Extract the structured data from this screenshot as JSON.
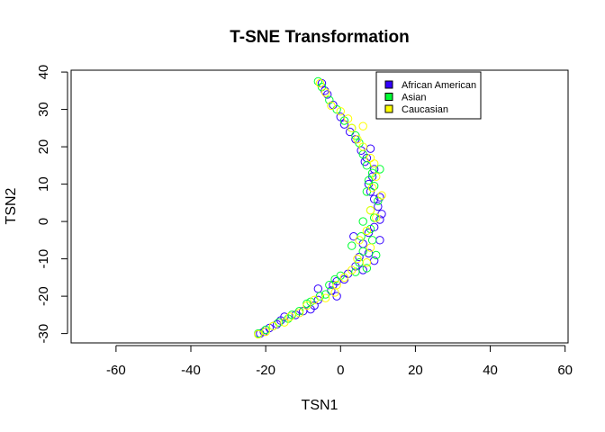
{
  "chart_data": {
    "type": "scatter",
    "title": "T-SNE Transformation",
    "xlabel": "TSN1",
    "ylabel": "TSN2",
    "xlim": [
      -72,
      60.8
    ],
    "ylim": [
      -32.5,
      40.5
    ],
    "xticks": [
      -60,
      -40,
      -20,
      0,
      20,
      40,
      60
    ],
    "yticks": [
      -30,
      -20,
      -10,
      0,
      10,
      20,
      30,
      40
    ],
    "xtick_labels": [
      "-60",
      "-40",
      "-20",
      "0",
      "20",
      "40",
      "60"
    ],
    "ytick_labels": [
      "-30",
      "-20",
      "-10",
      "0",
      "10",
      "20",
      "30",
      "40"
    ],
    "grid": false,
    "legend_position": "top-right",
    "marker": "open-circle",
    "series": [
      {
        "name": "African American",
        "color": "#3300ff",
        "points": [
          [
            -5,
            37
          ],
          [
            -4.2,
            35
          ],
          [
            -3.5,
            34
          ],
          [
            -2,
            31.2
          ],
          [
            0,
            28
          ],
          [
            1,
            26
          ],
          [
            2.5,
            24
          ],
          [
            4,
            22
          ],
          [
            5.5,
            19
          ],
          [
            6.5,
            16
          ],
          [
            8,
            19.5
          ],
          [
            7,
            17
          ],
          [
            9,
            14
          ],
          [
            8.5,
            12
          ],
          [
            7.5,
            10
          ],
          [
            8,
            8
          ],
          [
            9,
            6
          ],
          [
            10.5,
            6.5
          ],
          [
            10,
            4
          ],
          [
            11,
            2
          ],
          [
            10.5,
            0.5
          ],
          [
            9,
            -1.5
          ],
          [
            7.5,
            -3
          ],
          [
            3.5,
            -4
          ],
          [
            10.5,
            -5
          ],
          [
            6,
            -6
          ],
          [
            7.5,
            -8.5
          ],
          [
            5,
            -9.5
          ],
          [
            9,
            -10.5
          ],
          [
            4,
            -12
          ],
          [
            6,
            -13
          ],
          [
            2,
            -14
          ],
          [
            1,
            -15.5
          ],
          [
            -1,
            -16
          ],
          [
            -2,
            -17
          ],
          [
            -2.5,
            -18.5
          ],
          [
            -1,
            -20
          ],
          [
            -6,
            -18
          ],
          [
            -6,
            -21
          ],
          [
            -7,
            -22.5
          ],
          [
            -8,
            -23.5
          ],
          [
            -10,
            -24
          ],
          [
            -12,
            -25
          ],
          [
            -15,
            -25.5
          ],
          [
            -16,
            -26.5
          ],
          [
            -17,
            -27.5
          ],
          [
            -19,
            -28.5
          ],
          [
            -20.5,
            -29.5
          ],
          [
            -21.5,
            -30
          ]
        ]
      },
      {
        "name": "Asian",
        "color": "#00ff33",
        "points": [
          [
            -6,
            37.5
          ],
          [
            -5,
            36
          ],
          [
            -3,
            32.5
          ],
          [
            -1,
            30
          ],
          [
            1,
            27
          ],
          [
            3,
            25
          ],
          [
            4,
            23
          ],
          [
            5,
            21
          ],
          [
            6,
            18
          ],
          [
            7,
            15
          ],
          [
            8.5,
            13
          ],
          [
            10.5,
            14
          ],
          [
            7.5,
            11
          ],
          [
            9,
            9.5
          ],
          [
            7,
            8
          ],
          [
            10,
            5.5
          ],
          [
            8,
            3
          ],
          [
            9,
            1
          ],
          [
            6,
            0
          ],
          [
            8,
            -2
          ],
          [
            5.5,
            -4
          ],
          [
            8.5,
            -5
          ],
          [
            3,
            -6.5
          ],
          [
            6,
            -8
          ],
          [
            9.5,
            -9
          ],
          [
            5,
            -11
          ],
          [
            7,
            -12.5
          ],
          [
            4,
            -13.5
          ],
          [
            0,
            -14.5
          ],
          [
            -1.5,
            -15.5
          ],
          [
            -3,
            -17
          ],
          [
            -4,
            -19.5
          ],
          [
            -5.5,
            -20
          ],
          [
            -8,
            -21.5
          ],
          [
            -9,
            -22
          ],
          [
            -11,
            -24
          ],
          [
            -13,
            -25
          ],
          [
            -14,
            -26
          ],
          [
            -16.5,
            -27
          ],
          [
            -18,
            -28
          ],
          [
            -20,
            -29
          ],
          [
            -22,
            -30
          ]
        ]
      },
      {
        "name": "Caucasian",
        "color": "#ffff00",
        "points": [
          [
            -5.5,
            37
          ],
          [
            -4,
            34.5
          ],
          [
            -2.5,
            31
          ],
          [
            0,
            29.5
          ],
          [
            2,
            27.5
          ],
          [
            3,
            25
          ],
          [
            6,
            25.5
          ],
          [
            4.5,
            22
          ],
          [
            6,
            20
          ],
          [
            8,
            17
          ],
          [
            9,
            15.5
          ],
          [
            9.5,
            12
          ],
          [
            8.5,
            9
          ],
          [
            11,
            7
          ],
          [
            8,
            3
          ],
          [
            9.5,
            1
          ],
          [
            7,
            -2.5
          ],
          [
            5,
            -5
          ],
          [
            8,
            -7
          ],
          [
            4.5,
            -10
          ],
          [
            7,
            -11
          ],
          [
            3,
            -13
          ],
          [
            1,
            -15
          ],
          [
            -1,
            -17
          ],
          [
            -1.5,
            -19
          ],
          [
            -4,
            -20.5
          ],
          [
            -7,
            -21
          ],
          [
            -9,
            -22.5
          ],
          [
            -11,
            -24.5
          ],
          [
            -13.5,
            -25.5
          ],
          [
            -15,
            -27
          ],
          [
            -18,
            -28
          ],
          [
            -20,
            -29.5
          ],
          [
            -22,
            -30.2
          ]
        ]
      }
    ]
  }
}
